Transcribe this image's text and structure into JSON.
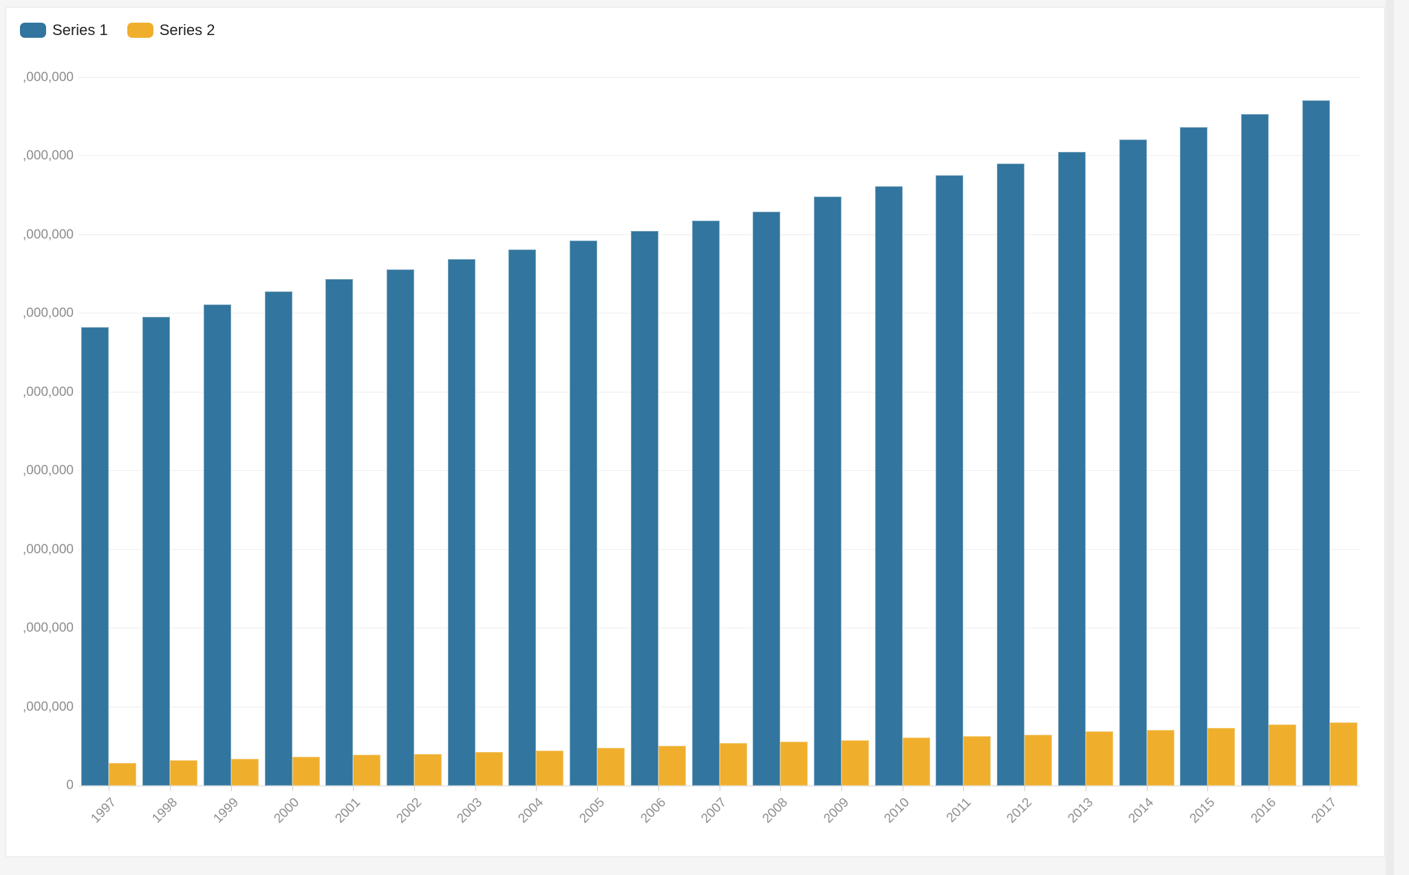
{
  "legend": {
    "series1_label": "Series 1",
    "series2_label": "Series 2"
  },
  "colors": {
    "series1": "#32759E",
    "series2": "#EFAF2D",
    "gridline": "#ededee",
    "axis_line": "#d8d8d8",
    "label_gray": "#8c8c8c",
    "card_background": "#ffffff",
    "page_background": "#f5f5f6"
  },
  "y_axis": {
    "tick_labels_bottom_to_top": [
      "0",
      ",000,000",
      ",000,000",
      ",000,000",
      ",000,000",
      ",000,000",
      ",000,000",
      ",000,000",
      ",000,000",
      ",000,000"
    ]
  },
  "chart_data": {
    "type": "bar",
    "title": "",
    "xlabel": "",
    "ylabel": "",
    "categories": [
      "1997",
      "1998",
      "1999",
      "2000",
      "2001",
      "2002",
      "2003",
      "2004",
      "2005",
      "2006",
      "2007",
      "2008",
      "2009",
      "2010",
      "2011",
      "2012",
      "2013",
      "2014",
      "2015",
      "2016",
      "2017"
    ],
    "series": [
      {
        "name": "Series 1",
        "values": [
          5830000,
          5960000,
          6120000,
          6280000,
          6440000,
          6560000,
          6690000,
          6820000,
          6930000,
          7050000,
          7180000,
          7300000,
          7490000,
          7620000,
          7760000,
          7910000,
          8060000,
          8210000,
          8370000,
          8540000,
          8710000
        ]
      },
      {
        "name": "Series 2",
        "values": [
          290000,
          320000,
          340000,
          370000,
          390000,
          400000,
          430000,
          450000,
          480000,
          510000,
          540000,
          560000,
          580000,
          610000,
          630000,
          650000,
          690000,
          710000,
          730000,
          780000,
          800000
        ]
      }
    ],
    "ylim": [
      0,
      9000000
    ],
    "y_tick_step": 1000000,
    "grid": "horizontal",
    "legend_position": "top-left",
    "x_tick_rotation": -45
  }
}
